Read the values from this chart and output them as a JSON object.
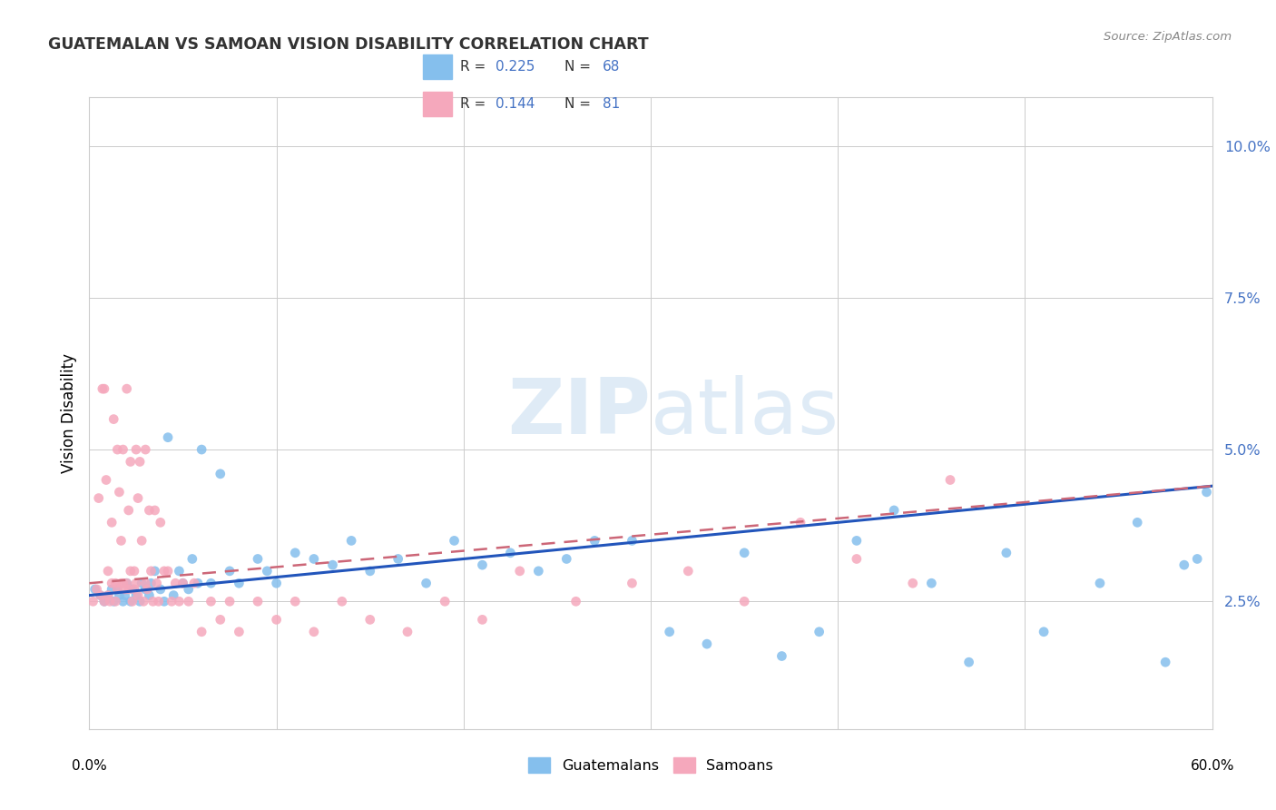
{
  "title": "GUATEMALAN VS SAMOAN VISION DISABILITY CORRELATION CHART",
  "source": "Source: ZipAtlas.com",
  "ylabel": "Vision Disability",
  "R_guatemalans": 0.225,
  "N_guatemalans": 68,
  "R_samoans": 0.144,
  "N_samoans": 81,
  "xlim": [
    0.0,
    0.6
  ],
  "ylim": [
    0.004,
    0.108
  ],
  "yticks": [
    0.025,
    0.05,
    0.075,
    0.1
  ],
  "ytick_labels": [
    "2.5%",
    "5.0%",
    "7.5%",
    "10.0%"
  ],
  "xticks": [
    0.0,
    0.1,
    0.2,
    0.3,
    0.4,
    0.5,
    0.6
  ],
  "color_guatemalans": "#85BFED",
  "color_samoans": "#F5A8BC",
  "trendline_guatemalans": "#2255BB",
  "trendline_samoans": "#CC6677",
  "legend_guatemalans": "Guatemalans",
  "legend_samoans": "Samoans",
  "guatemalans_x": [
    0.003,
    0.006,
    0.008,
    0.01,
    0.012,
    0.013,
    0.015,
    0.016,
    0.018,
    0.019,
    0.02,
    0.022,
    0.023,
    0.025,
    0.027,
    0.028,
    0.03,
    0.032,
    0.033,
    0.035,
    0.038,
    0.04,
    0.042,
    0.045,
    0.048,
    0.05,
    0.053,
    0.055,
    0.058,
    0.06,
    0.065,
    0.07,
    0.075,
    0.08,
    0.09,
    0.095,
    0.1,
    0.11,
    0.12,
    0.13,
    0.14,
    0.15,
    0.165,
    0.18,
    0.195,
    0.21,
    0.225,
    0.24,
    0.255,
    0.27,
    0.29,
    0.31,
    0.33,
    0.35,
    0.37,
    0.39,
    0.41,
    0.43,
    0.45,
    0.47,
    0.49,
    0.51,
    0.54,
    0.56,
    0.575,
    0.585,
    0.592,
    0.597
  ],
  "guatemalans_y": [
    0.027,
    0.026,
    0.025,
    0.026,
    0.027,
    0.025,
    0.027,
    0.026,
    0.025,
    0.026,
    0.028,
    0.025,
    0.027,
    0.026,
    0.025,
    0.028,
    0.027,
    0.026,
    0.028,
    0.03,
    0.027,
    0.025,
    0.052,
    0.026,
    0.03,
    0.028,
    0.027,
    0.032,
    0.028,
    0.05,
    0.028,
    0.046,
    0.03,
    0.028,
    0.032,
    0.03,
    0.028,
    0.033,
    0.032,
    0.031,
    0.035,
    0.03,
    0.032,
    0.028,
    0.035,
    0.031,
    0.033,
    0.03,
    0.032,
    0.035,
    0.035,
    0.02,
    0.018,
    0.033,
    0.016,
    0.02,
    0.035,
    0.04,
    0.028,
    0.015,
    0.033,
    0.02,
    0.028,
    0.038,
    0.015,
    0.031,
    0.032,
    0.043
  ],
  "samoans_x": [
    0.002,
    0.004,
    0.005,
    0.006,
    0.007,
    0.008,
    0.008,
    0.009,
    0.01,
    0.01,
    0.011,
    0.012,
    0.012,
    0.013,
    0.014,
    0.014,
    0.015,
    0.015,
    0.016,
    0.017,
    0.017,
    0.018,
    0.018,
    0.019,
    0.02,
    0.02,
    0.021,
    0.021,
    0.022,
    0.022,
    0.023,
    0.024,
    0.024,
    0.025,
    0.025,
    0.026,
    0.026,
    0.027,
    0.028,
    0.029,
    0.03,
    0.03,
    0.031,
    0.032,
    0.033,
    0.034,
    0.035,
    0.036,
    0.037,
    0.038,
    0.04,
    0.042,
    0.044,
    0.046,
    0.048,
    0.05,
    0.053,
    0.056,
    0.06,
    0.065,
    0.07,
    0.075,
    0.08,
    0.09,
    0.1,
    0.11,
    0.12,
    0.135,
    0.15,
    0.17,
    0.19,
    0.21,
    0.23,
    0.26,
    0.29,
    0.32,
    0.35,
    0.38,
    0.41,
    0.44,
    0.46
  ],
  "samoans_y": [
    0.025,
    0.027,
    0.042,
    0.026,
    0.06,
    0.06,
    0.025,
    0.045,
    0.03,
    0.026,
    0.025,
    0.038,
    0.028,
    0.055,
    0.028,
    0.025,
    0.05,
    0.027,
    0.043,
    0.035,
    0.028,
    0.05,
    0.028,
    0.027,
    0.06,
    0.028,
    0.04,
    0.027,
    0.048,
    0.03,
    0.025,
    0.03,
    0.027,
    0.05,
    0.028,
    0.042,
    0.026,
    0.048,
    0.035,
    0.025,
    0.05,
    0.028,
    0.027,
    0.04,
    0.03,
    0.025,
    0.04,
    0.028,
    0.025,
    0.038,
    0.03,
    0.03,
    0.025,
    0.028,
    0.025,
    0.028,
    0.025,
    0.028,
    0.02,
    0.025,
    0.022,
    0.025,
    0.02,
    0.025,
    0.022,
    0.025,
    0.02,
    0.025,
    0.022,
    0.02,
    0.025,
    0.022,
    0.03,
    0.025,
    0.028,
    0.03,
    0.025,
    0.038,
    0.032,
    0.028,
    0.045
  ]
}
